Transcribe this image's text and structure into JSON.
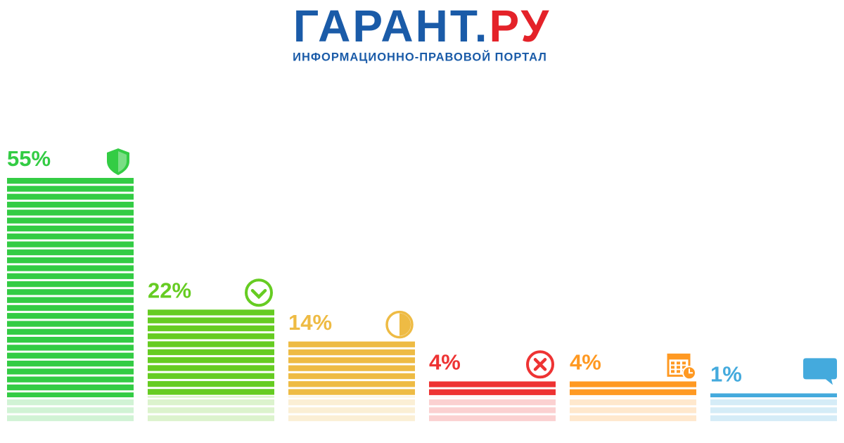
{
  "header": {
    "logo_main": "ГАРАНТ",
    "logo_dot": ".",
    "logo_tail": "РУ",
    "tagline": "ИНФОРМАЦИОННО-ПРАВОВОЙ ПОРТАЛ"
  },
  "chart_data": {
    "type": "bar",
    "values": [
      55,
      22,
      14,
      4,
      4,
      1
    ],
    "value_labels": [
      "55%",
      "22%",
      "14%",
      "4%",
      "4%",
      "1%"
    ],
    "colors": [
      "#33cc44",
      "#66cc22",
      "#eebb44",
      "#ee3333",
      "#ff9922",
      "#44aadd"
    ]
  }
}
